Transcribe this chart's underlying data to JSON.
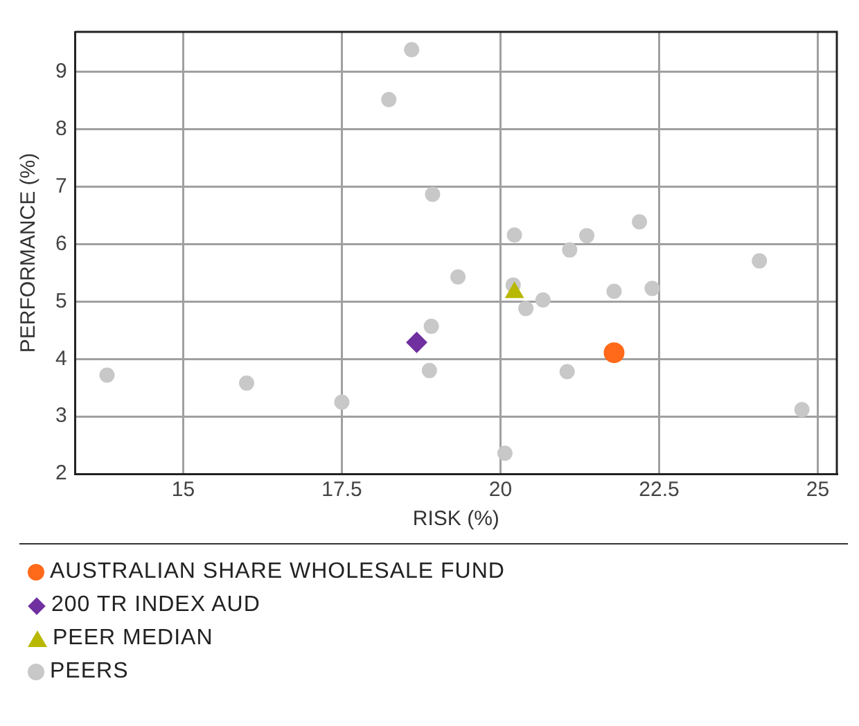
{
  "chart_data": {
    "type": "scatter",
    "xlabel": "RISK (%)",
    "ylabel": "PERFORMANCE (%)",
    "xlim": [
      13.3,
      25.3
    ],
    "xticks": [
      15,
      17.5,
      20,
      22.5,
      25
    ],
    "ylim": [
      2,
      9.7
    ],
    "yticks": [
      2,
      3,
      4,
      5,
      6,
      7,
      8,
      9
    ],
    "grid": true,
    "legend": "bottom",
    "series": [
      {
        "name": "AUSTRALIAN SHARE WHOLESALE FUND",
        "color": "#ff6a1a",
        "marker": "circle",
        "x": [
          21.79
        ],
        "values": [
          4.11
        ]
      },
      {
        "name": "200 TR INDEX AUD",
        "color": "#7030a0",
        "marker": "diamond",
        "x": [
          18.68
        ],
        "values": [
          4.29
        ]
      },
      {
        "name": "PEER MEDIAN",
        "color": "#b8b800",
        "marker": "triangle",
        "x": [
          20.22
        ],
        "values": [
          5.16
        ]
      },
      {
        "name": "PEERS",
        "color": "#c8c8c8",
        "marker": "circle",
        "x": [
          18.6,
          18.24,
          18.93,
          20.22,
          21.09,
          21.36,
          22.19,
          24.08,
          19.33,
          20.2,
          21.79,
          22.39,
          20.67,
          20.4,
          18.91,
          18.88,
          21.05,
          13.8,
          16.0,
          17.5,
          24.75,
          20.07
        ],
        "values": [
          9.39,
          8.52,
          6.87,
          6.16,
          5.9,
          6.15,
          6.39,
          5.71,
          5.43,
          5.29,
          5.18,
          5.23,
          5.03,
          4.88,
          4.57,
          3.8,
          3.78,
          3.72,
          3.58,
          3.25,
          3.12,
          2.36
        ]
      }
    ]
  }
}
